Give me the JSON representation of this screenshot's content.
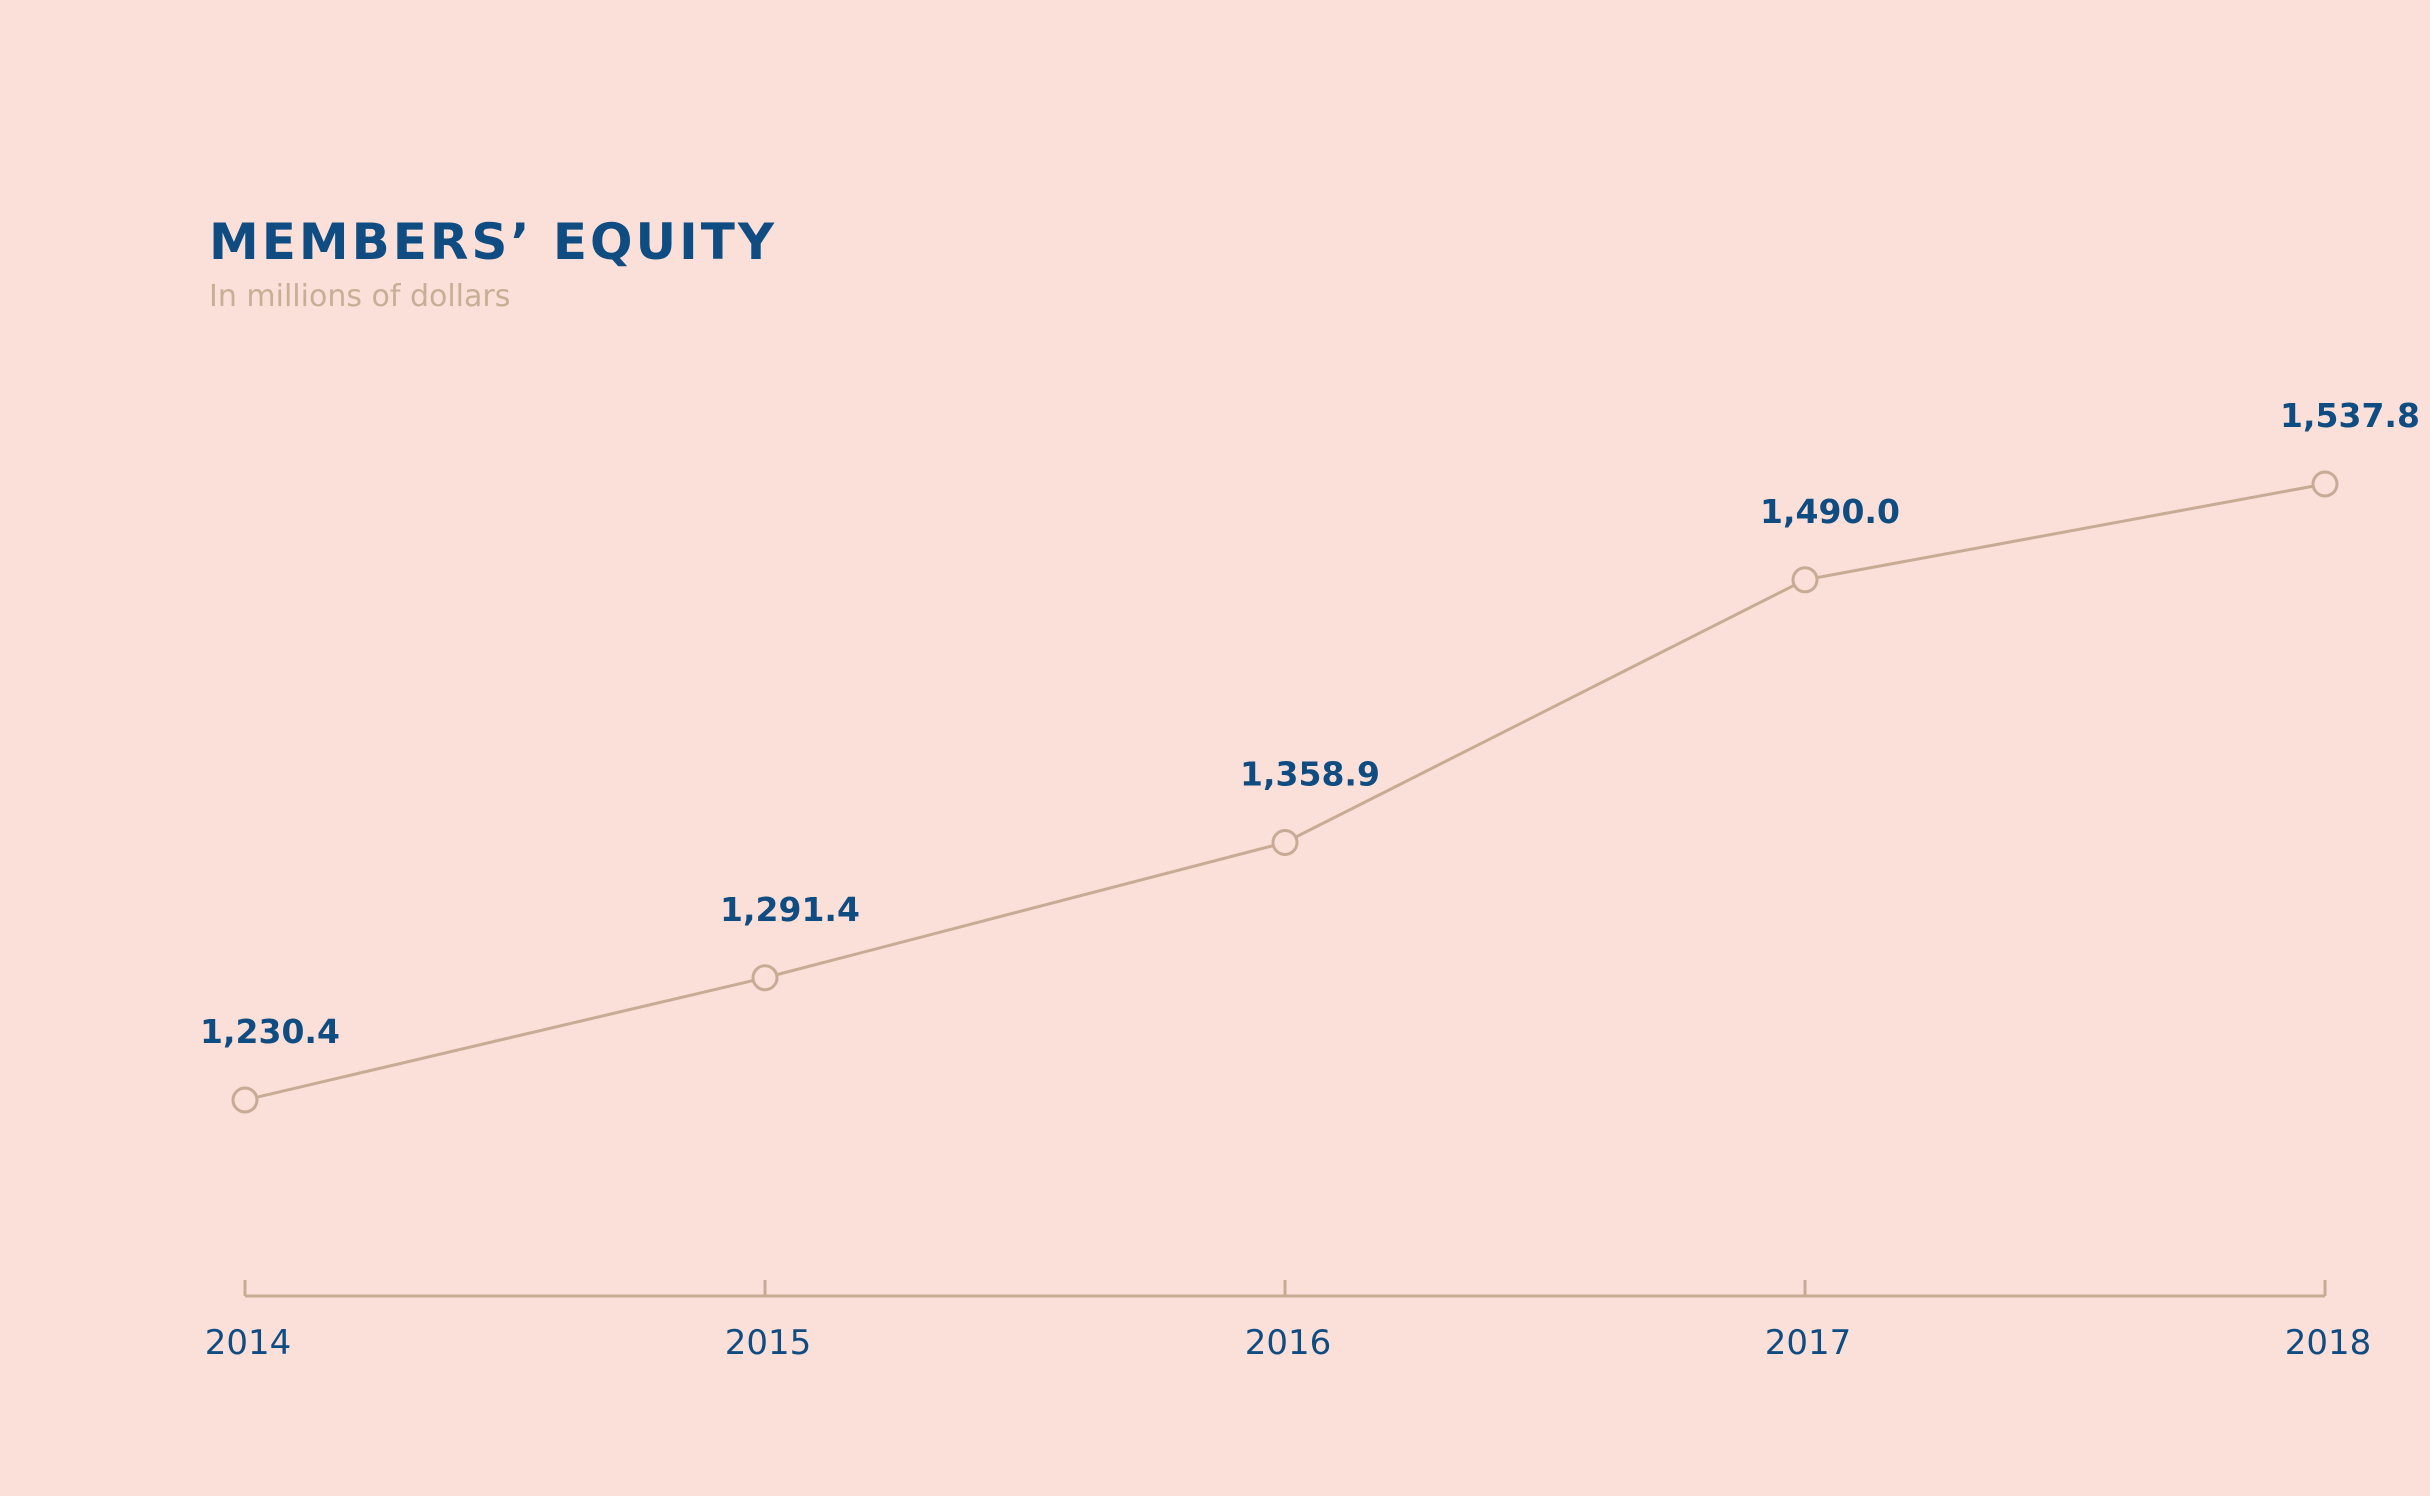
{
  "chart_data": {
    "type": "line",
    "title": "MEMBERS’ EQUITY",
    "subtitle": "In millions of dollars",
    "categories": [
      "2014",
      "2015",
      "2016",
      "2017",
      "2018"
    ],
    "values": [
      1230.4,
      1291.4,
      1358.9,
      1490.0,
      1537.8
    ],
    "value_labels": [
      "1,230.4",
      "1,291.4",
      "1,358.9",
      "1,490.0",
      "1,537.8"
    ],
    "color": "#c8ab94"
  }
}
